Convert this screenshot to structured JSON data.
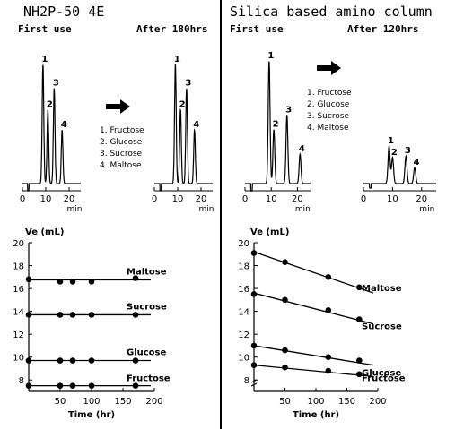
{
  "panels": [
    {
      "title": "NH2P-50 4E",
      "before_label": "First use",
      "after_label": "After 180hrs"
    },
    {
      "title": "Silica based amino column",
      "before_label": "First use",
      "after_label": "After 120hrs"
    }
  ],
  "legend_items": [
    "1. Fructose",
    "2. Glucose",
    "3. Sucrose",
    "4. Maltose"
  ],
  "chromatogram_xlabel": "min",
  "chart_data": [
    {
      "type": "line",
      "name_ref": "NH2P-50 4E chromatogram first use",
      "x_ticks": [
        0,
        10,
        20
      ],
      "xlabel": "min",
      "peaks": [
        {
          "label": "1",
          "rt": 8.8,
          "height": 1.0
        },
        {
          "label": "2",
          "rt": 10.9,
          "height": 0.62
        },
        {
          "label": "3",
          "rt": 13.6,
          "height": 0.8
        },
        {
          "label": "4",
          "rt": 17.0,
          "height": 0.45
        }
      ]
    },
    {
      "type": "line",
      "name_ref": "NH2P-50 4E chromatogram after 180hrs",
      "x_ticks": [
        0,
        10,
        20
      ],
      "xlabel": "min",
      "peaks": [
        {
          "label": "1",
          "rt": 9.0,
          "height": 1.0
        },
        {
          "label": "2",
          "rt": 11.2,
          "height": 0.62
        },
        {
          "label": "3",
          "rt": 13.8,
          "height": 0.8
        },
        {
          "label": "4",
          "rt": 17.2,
          "height": 0.45
        }
      ]
    },
    {
      "type": "line",
      "name_ref": "Silica chromatogram first use",
      "x_ticks": [
        0,
        10,
        20
      ],
      "xlabel": "min",
      "peaks": [
        {
          "label": "1",
          "rt": 9.2,
          "height": 1.0
        },
        {
          "label": "2",
          "rt": 11.0,
          "height": 0.44
        },
        {
          "label": "3",
          "rt": 16.0,
          "height": 0.56
        },
        {
          "label": "4",
          "rt": 21.0,
          "height": 0.24
        }
      ]
    },
    {
      "type": "line",
      "name_ref": "Silica chromatogram after 120hrs",
      "x_ticks": [
        0,
        10,
        20
      ],
      "xlabel": "min",
      "peaks": [
        {
          "label": "1",
          "rt": 8.8,
          "height": 0.52
        },
        {
          "label": "2",
          "rt": 10.0,
          "height": 0.36
        },
        {
          "label": "3",
          "rt": 14.6,
          "height": 0.38
        },
        {
          "label": "4",
          "rt": 17.6,
          "height": 0.22
        }
      ]
    },
    {
      "type": "line",
      "ylabel": "Ve (mL)",
      "xlabel": "Time (hr)",
      "ylim": [
        7,
        20
      ],
      "xlim": [
        0,
        200
      ],
      "y_ticks": [
        8,
        10,
        12,
        14,
        16,
        18,
        20
      ],
      "x_ticks": [
        50,
        100,
        150,
        200
      ],
      "series": [
        {
          "name": "Maltose",
          "x": [
            0,
            50,
            70,
            100,
            170
          ],
          "y": [
            16.8,
            16.6,
            16.6,
            16.6,
            16.9
          ],
          "fit": [
            16.75,
            16.75
          ]
        },
        {
          "name": "Sucrose",
          "x": [
            0,
            50,
            70,
            100,
            170
          ],
          "y": [
            13.7,
            13.7,
            13.7,
            13.7,
            13.7
          ],
          "fit": [
            13.7,
            13.7
          ]
        },
        {
          "name": "Glucose",
          "x": [
            0,
            50,
            70,
            100,
            170
          ],
          "y": [
            9.7,
            9.7,
            9.7,
            9.7,
            9.7
          ],
          "fit": [
            9.7,
            9.7
          ]
        },
        {
          "name": "Fructose",
          "x": [
            0,
            50,
            70,
            100,
            170
          ],
          "y": [
            7.5,
            7.5,
            7.5,
            7.5,
            7.5
          ],
          "fit": [
            7.5,
            7.5
          ]
        }
      ]
    },
    {
      "type": "line",
      "ylabel": "Ve (mL)",
      "xlabel": "Time (hr)",
      "ylim": [
        7,
        20
      ],
      "xlim": [
        0,
        200
      ],
      "y_ticks": [
        8,
        10,
        12,
        14,
        16,
        18,
        20
      ],
      "x_ticks": [
        50,
        100,
        150,
        200
      ],
      "series": [
        {
          "name": "Maltose",
          "x": [
            0,
            50,
            120,
            170
          ],
          "y": [
            19.1,
            18.3,
            17.0,
            16.1
          ],
          "fit": [
            19.2,
            15.6
          ]
        },
        {
          "name": "Sucrose",
          "x": [
            0,
            50,
            120,
            170
          ],
          "y": [
            15.5,
            15.0,
            14.1,
            13.3
          ],
          "fit": [
            15.6,
            12.9
          ]
        },
        {
          "name": "Glucose",
          "x": [
            0,
            50,
            120,
            170
          ],
          "y": [
            11.0,
            10.6,
            10.0,
            9.7
          ],
          "fit": [
            11.0,
            9.3
          ]
        },
        {
          "name": "Fructose",
          "x": [
            0,
            50,
            120,
            170
          ],
          "y": [
            9.3,
            9.1,
            8.8,
            8.5
          ],
          "fit": [
            9.3,
            8.3
          ]
        }
      ]
    }
  ]
}
